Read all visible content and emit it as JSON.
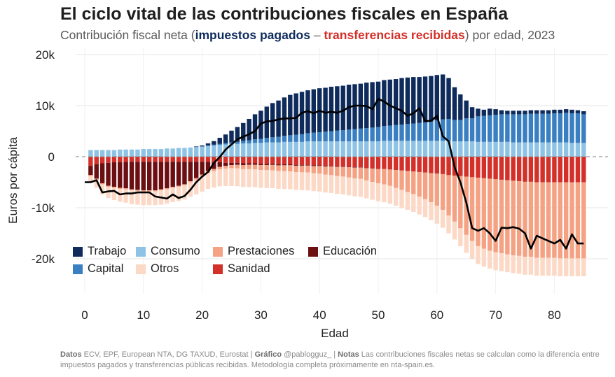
{
  "title": "El ciclo vital de las contribuciones fiscales en España",
  "subtitle": {
    "pre": "Contribución fiscal neta (",
    "positive": "impuestos pagados",
    "dash": " – ",
    "negative": "transferencias recibidas",
    "post": ") por edad, 2023"
  },
  "footer": {
    "datos_label": "Datos",
    "datos": " ECV, EPF, European NTA, DG TAXUD, Eurostat | ",
    "grafico_label": "Gráfico",
    "grafico": " @pablogguz_ | ",
    "notas_label": "Notas",
    "notas": " Las contribuciones fiscales netas se calculan como la diferencia entre impuestos pagados y transferencias públicas recibidas. Metodología completa próximamente en nta-spain.es."
  },
  "colors": {
    "Trabajo": "#0e2b5c",
    "Capital": "#3a7fc1",
    "Consumo": "#8ec3e6",
    "Otros": "#fbd9c6",
    "Prestaciones": "#f4a283",
    "Educación": "#6b0f12",
    "Sanidad": "#d3302a",
    "net": "#000000"
  },
  "chart_data": {
    "type": "bar",
    "stacked": true,
    "title": "El ciclo vital de las contribuciones fiscales en España",
    "xlabel": "Edad",
    "ylabel": "Euros por cápita",
    "xlim": [
      0,
      86
    ],
    "ylim": [
      -27000,
      21000
    ],
    "xticks": [
      0,
      10,
      20,
      30,
      40,
      50,
      60,
      70,
      80
    ],
    "yticks": [
      20000,
      10000,
      0,
      -10000,
      -20000
    ],
    "ytick_labels": [
      "20k",
      "10k",
      "0",
      "-10k",
      "-20k"
    ],
    "zero_line": "dashed",
    "legend_position": "bottom-left",
    "legend": [
      "Trabajo",
      "Capital",
      "Consumo",
      "Prestaciones",
      "Educación",
      "Otros",
      "Sanidad"
    ],
    "ages": [
      1,
      2,
      3,
      4,
      5,
      6,
      7,
      8,
      9,
      10,
      11,
      12,
      13,
      14,
      15,
      16,
      17,
      18,
      19,
      20,
      21,
      22,
      23,
      24,
      25,
      26,
      27,
      28,
      29,
      30,
      31,
      32,
      33,
      34,
      35,
      36,
      37,
      38,
      39,
      40,
      41,
      42,
      43,
      44,
      45,
      46,
      47,
      48,
      49,
      50,
      51,
      52,
      53,
      54,
      55,
      56,
      57,
      58,
      59,
      60,
      61,
      62,
      63,
      64,
      65,
      66,
      67,
      68,
      69,
      70,
      71,
      72,
      73,
      74,
      75,
      76,
      77,
      78,
      79,
      80,
      81,
      82,
      83,
      84,
      85
    ],
    "positive_series": [
      {
        "name": "Consumo",
        "values": [
          1300,
          1300,
          1300,
          1300,
          1300,
          1400,
          1400,
          1400,
          1400,
          1500,
          1500,
          1500,
          1500,
          1600,
          1600,
          1700,
          1700,
          1800,
          1900,
          2000,
          2100,
          2200,
          2300,
          2400,
          2500,
          2500,
          2600,
          2600,
          2700,
          2700,
          2800,
          2800,
          2800,
          2900,
          2900,
          2900,
          2900,
          3000,
          3000,
          3000,
          3000,
          3000,
          3000,
          3000,
          3000,
          3000,
          3000,
          3000,
          3000,
          3000,
          3100,
          3100,
          3100,
          3100,
          3100,
          3100,
          3100,
          3100,
          3100,
          3100,
          3100,
          3100,
          3000,
          3000,
          3000,
          3000,
          2900,
          2900,
          2900,
          2900,
          2900,
          2900,
          2800,
          2800,
          2800,
          2800,
          2800,
          2800,
          2800,
          2800,
          2800,
          2800,
          2700,
          2700,
          2700
        ]
      },
      {
        "name": "Capital",
        "values": [
          0,
          0,
          0,
          0,
          0,
          0,
          0,
          0,
          0,
          0,
          0,
          0,
          0,
          0,
          0,
          0,
          0,
          0,
          0,
          0,
          100,
          150,
          200,
          250,
          300,
          400,
          500,
          600,
          700,
          800,
          900,
          1000,
          1100,
          1200,
          1300,
          1400,
          1500,
          1600,
          1700,
          1800,
          1900,
          2000,
          2100,
          2200,
          2300,
          2400,
          2500,
          2600,
          2700,
          2800,
          2900,
          3000,
          3100,
          3200,
          3300,
          3400,
          3500,
          3600,
          3800,
          4000,
          4200,
          4300,
          4200,
          4200,
          4500,
          4500,
          5000,
          5100,
          5200,
          5300,
          5400,
          5400,
          5500,
          5500,
          5500,
          5600,
          5600,
          5600,
          5600,
          5700,
          5700,
          5800,
          5800,
          5800,
          5600
        ]
      },
      {
        "name": "Trabajo",
        "values": [
          0,
          0,
          0,
          0,
          0,
          0,
          0,
          0,
          0,
          0,
          0,
          0,
          0,
          0,
          0,
          0,
          0,
          0,
          100,
          200,
          400,
          700,
          1200,
          1700,
          2300,
          2900,
          3500,
          4200,
          4900,
          5500,
          6100,
          6700,
          7100,
          7500,
          7900,
          8100,
          8300,
          8400,
          8500,
          8600,
          8600,
          8700,
          8700,
          8700,
          8800,
          8800,
          8800,
          8900,
          8900,
          8900,
          9000,
          9000,
          9000,
          9100,
          9100,
          9100,
          9000,
          9000,
          8900,
          8900,
          8800,
          8000,
          6400,
          5000,
          3500,
          2200,
          1500,
          1200,
          1300,
          1100,
          800,
          700,
          700,
          700,
          700,
          700,
          700,
          700,
          700,
          700,
          700,
          700,
          700,
          600,
          600
        ]
      },
      {
        "name": "Capital",
        "values": [
          0,
          0,
          0,
          0,
          0,
          0,
          0,
          0,
          0,
          0,
          0,
          0,
          0,
          0,
          0,
          0,
          0,
          0,
          0,
          0,
          0,
          0,
          0,
          0,
          0,
          0,
          0,
          0,
          0,
          0,
          0,
          0,
          0,
          0,
          0,
          0,
          0,
          0,
          0,
          0,
          0,
          0,
          0,
          0,
          0,
          0,
          0,
          0,
          0,
          0,
          0,
          0,
          0,
          0,
          0,
          0,
          0,
          0,
          0,
          0,
          0,
          0,
          0,
          0,
          0,
          0,
          0,
          0,
          0,
          0,
          0,
          0,
          0,
          0,
          0,
          0,
          0,
          0,
          0,
          0,
          0,
          0,
          0,
          0,
          0
        ]
      }
    ],
    "negative_series": [
      {
        "name": "Sanidad",
        "values": [
          -1800,
          -1500,
          -1300,
          -1200,
          -1100,
          -1100,
          -1000,
          -1000,
          -1000,
          -1000,
          -1000,
          -1000,
          -1000,
          -1000,
          -1000,
          -1000,
          -1000,
          -1000,
          -1000,
          -1000,
          -1000,
          -1100,
          -1100,
          -1200,
          -1200,
          -1200,
          -1300,
          -1300,
          -1300,
          -1400,
          -1400,
          -1400,
          -1500,
          -1500,
          -1500,
          -1600,
          -1600,
          -1600,
          -1700,
          -1700,
          -1800,
          -1800,
          -1900,
          -1900,
          -2000,
          -2100,
          -2100,
          -2200,
          -2300,
          -2400,
          -2400,
          -2500,
          -2600,
          -2700,
          -2800,
          -2900,
          -3000,
          -3100,
          -3200,
          -3300,
          -3400,
          -3600,
          -3700,
          -3800,
          -3900,
          -4000,
          -4100,
          -4200,
          -4300,
          -4400,
          -4500,
          -4600,
          -4700,
          -4800,
          -4900,
          -4900,
          -5000,
          -5000,
          -5000,
          -5000,
          -5000,
          -5000,
          -5000,
          -5000,
          -5000
        ]
      },
      {
        "name": "Educación",
        "values": [
          -1800,
          -2800,
          -3900,
          -4500,
          -4800,
          -5000,
          -5200,
          -5400,
          -5500,
          -5600,
          -5600,
          -5600,
          -5400,
          -5200,
          -4900,
          -4700,
          -4400,
          -3800,
          -3200,
          -2500,
          -1800,
          -1300,
          -900,
          -600,
          -450,
          -400,
          -350,
          -300,
          -280,
          -260,
          -240,
          -220,
          -200,
          -190,
          -180,
          -170,
          -160,
          -150,
          -140,
          -130,
          -120,
          -110,
          -100,
          -90,
          -80,
          -70,
          -60,
          -50,
          -40,
          -30,
          -20,
          -20,
          -20,
          -20,
          -20,
          -20,
          -20,
          -20,
          -20,
          -20,
          -20,
          -20,
          -20,
          -20,
          -20,
          -20,
          -20,
          -20,
          -20,
          -20,
          -20,
          -20,
          -20,
          -20,
          -20,
          -20,
          -20,
          -20,
          -20,
          -20,
          -20,
          -20,
          -20,
          -20,
          -20
        ]
      },
      {
        "name": "Prestaciones",
        "values": [
          -200,
          -200,
          -200,
          -200,
          -200,
          -200,
          -200,
          -200,
          -200,
          -200,
          -200,
          -200,
          -200,
          -200,
          -200,
          -200,
          -200,
          -250,
          -300,
          -350,
          -400,
          -450,
          -500,
          -550,
          -600,
          -700,
          -800,
          -850,
          -900,
          -950,
          -1000,
          -1050,
          -1100,
          -1150,
          -1200,
          -1250,
          -1300,
          -1350,
          -1400,
          -1500,
          -1600,
          -1700,
          -1800,
          -1900,
          -2000,
          -2100,
          -2200,
          -2400,
          -2600,
          -2800,
          -3000,
          -3200,
          -3500,
          -3800,
          -4100,
          -4400,
          -4800,
          -5200,
          -5700,
          -6300,
          -7000,
          -7900,
          -9000,
          -10200,
          -11400,
          -12500,
          -13400,
          -13800,
          -14100,
          -14300,
          -14400,
          -14500,
          -14600,
          -14600,
          -14700,
          -14700,
          -14800,
          -14800,
          -14800,
          -14800,
          -14900,
          -14900,
          -14900,
          -14900,
          -14900
        ]
      },
      {
        "name": "Otros",
        "values": [
          -1200,
          -1600,
          -2000,
          -2200,
          -2400,
          -2500,
          -2600,
          -2700,
          -2700,
          -2700,
          -2700,
          -2700,
          -2800,
          -2800,
          -2800,
          -2800,
          -2800,
          -2800,
          -2900,
          -3000,
          -3100,
          -3200,
          -3300,
          -3400,
          -3500,
          -3500,
          -3500,
          -3500,
          -3500,
          -3500,
          -3500,
          -3500,
          -3500,
          -3500,
          -3500,
          -3500,
          -3500,
          -3500,
          -3500,
          -3500,
          -3500,
          -3500,
          -3500,
          -3500,
          -3500,
          -3500,
          -3500,
          -3500,
          -3500,
          -3500,
          -3500,
          -3500,
          -3500,
          -3500,
          -3500,
          -3500,
          -3500,
          -3500,
          -3500,
          -3500,
          -3500,
          -3500,
          -3500,
          -3500,
          -3500,
          -3500,
          -3500,
          -3500,
          -3500,
          -3500,
          -3500,
          -3500,
          -3500,
          -3500,
          -3500,
          -3500,
          -3500,
          -3500,
          -3500,
          -3500,
          -3500,
          -3500,
          -3500,
          -3500,
          -3500
        ]
      }
    ],
    "net_line": {
      "name": "Contribución fiscal neta",
      "x": [
        0,
        1,
        2,
        3,
        4,
        5,
        6,
        7,
        8,
        9,
        10,
        11,
        12,
        13,
        14,
        15,
        16,
        17,
        18,
        19,
        20,
        21,
        22,
        23,
        24,
        25,
        26,
        27,
        28,
        29,
        30,
        31,
        32,
        33,
        34,
        35,
        36,
        37,
        38,
        39,
        40,
        41,
        42,
        43,
        44,
        45,
        46,
        47,
        48,
        49,
        50,
        51,
        52,
        53,
        54,
        55,
        56,
        57,
        58,
        59,
        60,
        61,
        62,
        63,
        64,
        65,
        66,
        67,
        68,
        69,
        70,
        71,
        72,
        73,
        74,
        75,
        76,
        77,
        78,
        79,
        80,
        81,
        82,
        83,
        84,
        85
      ],
      "y": [
        -5000,
        -5000,
        -4600,
        -7000,
        -6800,
        -6700,
        -7400,
        -7200,
        -7200,
        -7000,
        -7000,
        -7000,
        -7800,
        -8000,
        -8200,
        -7400,
        -8100,
        -7700,
        -6500,
        -5000,
        -3900,
        -3000,
        -1200,
        -100,
        1400,
        2400,
        3400,
        3900,
        4400,
        5000,
        6500,
        6900,
        7000,
        7300,
        7500,
        7500,
        7600,
        8600,
        8900,
        8500,
        9000,
        8600,
        8800,
        8600,
        9000,
        9700,
        10000,
        10000,
        9900,
        9300,
        11300,
        10800,
        10000,
        9500,
        9000,
        8000,
        8500,
        9500,
        7000,
        7000,
        8000,
        4000,
        3000,
        -2000,
        -5000,
        -9000,
        -14000,
        -14500,
        -14000,
        -15000,
        -16500,
        -13900,
        -14000,
        -13800,
        -14100,
        -15000,
        -18000,
        -15500,
        -16000,
        -16500,
        -17000,
        -16300,
        -18000,
        -15200,
        -17000,
        -17000
      ]
    }
  }
}
